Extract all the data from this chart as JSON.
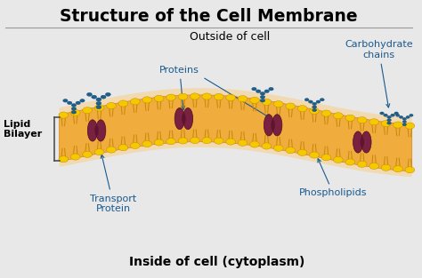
{
  "title": "Structure of the Cell Membrane",
  "title_fontsize": 13.5,
  "title_fontweight": "bold",
  "outside_label": "Outside of cell",
  "inside_label": "Inside of cell (cytoplasm)",
  "lipid_bilayer_label": "Lipid\nBilayer",
  "labels": {
    "proteins": "Proteins",
    "transport_protein": "Transport\nProtein",
    "phospholipids": "Phospholipids",
    "carbohydrate": "Carbohydrate\nchains"
  },
  "colors": {
    "background": "#f0f0f0",
    "membrane_inner_fill": "#f5c97a",
    "membrane_outer_fill": "#e8a535",
    "membrane_shadow": "#d4c0a0",
    "phospholipid_head": "#f5c800",
    "phospholipid_head_ec": "#bb8800",
    "phospholipid_tail": "#c8890a",
    "transport_protein": "#7a2040",
    "transport_protein_ec": "#4a1020",
    "carbohydrate_chain": "#1a6090",
    "carbohydrate_chain_ec": "#0a3a60",
    "label_color": "#1a5a90",
    "title_color": "#000000",
    "bracket_color": "#444444",
    "shadow_blue": "#add8e6"
  },
  "bg_color": "#e8e8e8"
}
